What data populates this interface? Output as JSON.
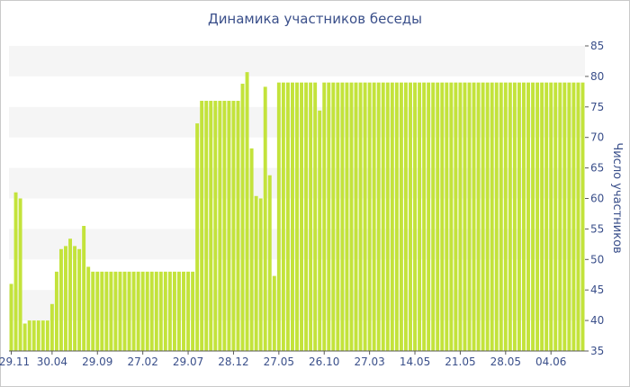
{
  "chart_data": {
    "type": "bar",
    "title": "Динамика участников беседы",
    "ylabel": "Число участников",
    "xlabel": "",
    "ylim": [
      35,
      85
    ],
    "y_ticks": [
      35,
      40,
      45,
      50,
      55,
      60,
      65,
      70,
      75,
      80,
      85
    ],
    "x_tick_labels": [
      {
        "label": "29.11",
        "index": 0
      },
      {
        "label": "30.04",
        "index": 9
      },
      {
        "label": "29.09",
        "index": 19
      },
      {
        "label": "27.02",
        "index": 29
      },
      {
        "label": "29.07",
        "index": 39
      },
      {
        "label": "28.12",
        "index": 49
      },
      {
        "label": "27.05",
        "index": 59
      },
      {
        "label": "26.10",
        "index": 69
      },
      {
        "label": "27.03",
        "index": 79
      },
      {
        "label": "14.05",
        "index": 89
      },
      {
        "label": "21.05",
        "index": 99
      },
      {
        "label": "28.05",
        "index": 109
      },
      {
        "label": "04.06",
        "index": 119
      }
    ],
    "grid": true,
    "bar_color": "#c3e33b",
    "values": [
      46,
      61,
      60,
      39.5,
      40,
      40,
      40,
      40,
      40,
      42.7,
      48,
      51.7,
      52.2,
      53.4,
      52.2,
      51.7,
      55.5,
      48.8,
      48,
      48,
      48,
      48,
      48,
      48,
      48,
      48,
      48,
      48,
      48,
      48,
      48,
      48,
      48,
      48,
      48,
      48,
      48,
      48,
      48,
      48,
      48,
      72.3,
      76,
      76,
      76,
      76,
      76,
      76,
      76,
      76,
      76,
      78.8,
      80.7,
      68.2,
      60.4,
      60,
      78.3,
      63.8,
      47.3,
      79,
      79,
      79,
      79,
      79,
      79,
      79,
      79,
      79,
      74.4,
      79,
      79,
      79,
      79,
      79,
      79,
      79,
      79,
      79,
      79,
      79,
      79,
      79,
      79,
      79,
      79,
      79,
      79,
      79,
      79,
      79,
      79,
      79,
      79,
      79,
      79,
      79,
      79,
      79,
      79,
      79,
      79,
      79,
      79,
      79,
      79,
      79,
      79,
      79,
      79,
      79,
      79,
      79,
      79,
      79,
      79,
      79,
      79,
      79,
      79,
      79,
      79,
      79,
      79,
      79,
      79,
      79,
      79
    ]
  }
}
